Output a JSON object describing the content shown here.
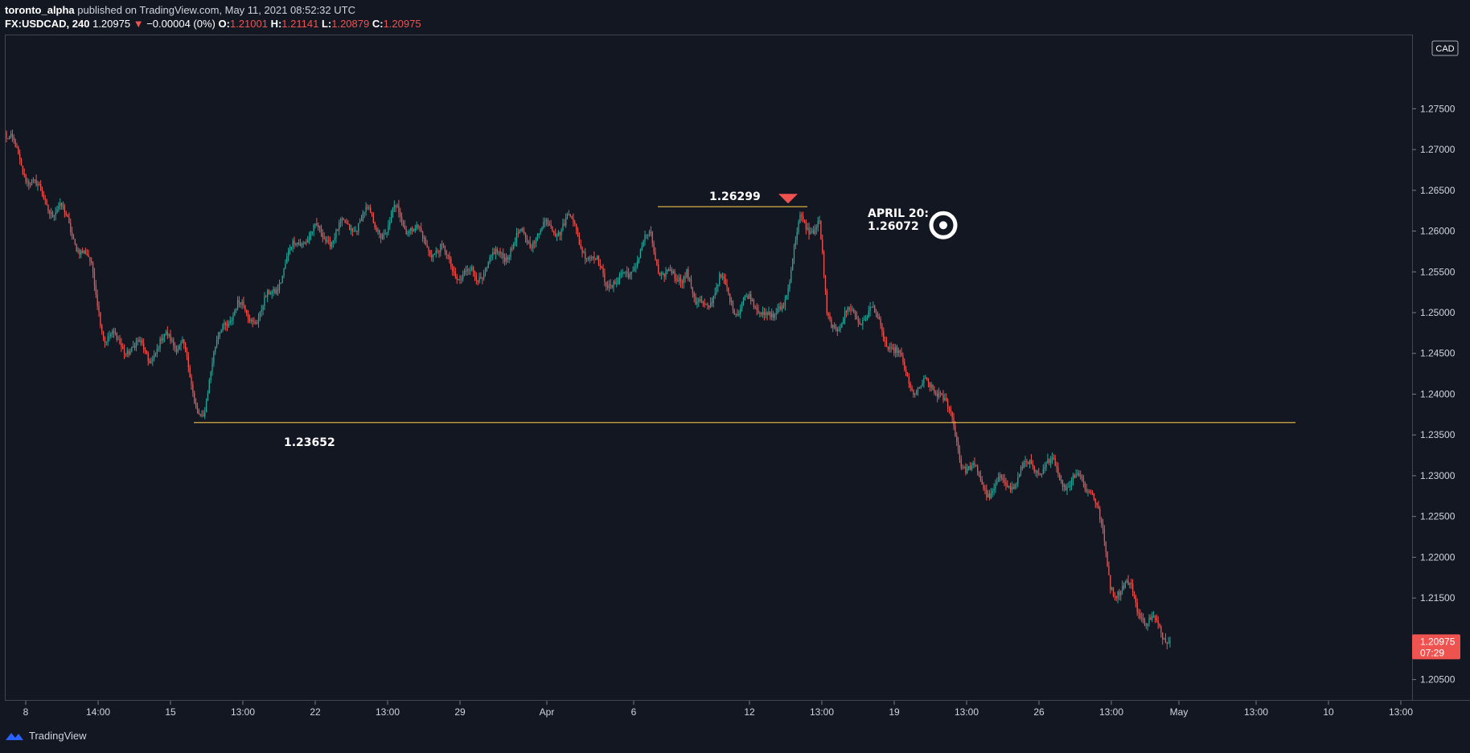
{
  "header": {
    "author": "toronto_alpha",
    "published_text": "published on TradingView.com, May 11, 2021 08:52:32 UTC",
    "symbol": "FX:USDCAD, 240",
    "last": "1.20975",
    "change": "−0.00004 (0%)",
    "o_label": "O:",
    "o_value": "1.21001",
    "h_label": "H:",
    "h_value": "1.21141",
    "l_label": "L:",
    "l_value": "1.20879",
    "c_label": "C:",
    "c_value": "1.20975"
  },
  "footer": {
    "brand": "TradingView"
  },
  "colors": {
    "background": "#131722",
    "up": "#26a69a",
    "down": "#ef5350",
    "level_line": "#f0c04a",
    "text": "#d1d4dc",
    "frame": "#434651"
  },
  "chart_data": {
    "type": "candlestick",
    "currency": "CAD",
    "ylim": [
      1.2025,
      1.284
    ],
    "y_ticks": [
      "1.27500",
      "1.27000",
      "1.26500",
      "1.26000",
      "1.25500",
      "1.25000",
      "1.24500",
      "1.24000",
      "1.23500",
      "1.23000",
      "1.22500",
      "1.22000",
      "1.21500",
      "1.20500"
    ],
    "x_ticks": [
      "8",
      "14:00",
      "15",
      "13:00",
      "22",
      "13:00",
      "29",
      "Apr",
      "6",
      "12",
      "13:00",
      "19",
      "13:00",
      "26",
      "13:00",
      "May",
      "13:00",
      "10",
      "13:00"
    ],
    "price_label": {
      "value": "1.20975",
      "countdown": "07:29"
    },
    "annotations": [
      {
        "type": "horizontal_level",
        "value": 1.23652,
        "label": "1.23652"
      },
      {
        "type": "horizontal_level",
        "value": 1.26299,
        "label": "1.26299",
        "marker": "down-arrow"
      },
      {
        "type": "target",
        "value": 1.26072,
        "label_line1": "APRIL 20:",
        "label_line2": "1.26072"
      }
    ],
    "trend_points": [
      [
        0,
        1.2705
      ],
      [
        20,
        1.2655
      ],
      [
        35,
        1.263
      ],
      [
        50,
        1.257
      ],
      [
        58,
        1.254
      ],
      [
        66,
        1.2475
      ],
      [
        82,
        1.2465
      ],
      [
        95,
        1.244
      ],
      [
        110,
        1.2465
      ],
      [
        118,
        1.2475
      ],
      [
        126,
        1.239
      ],
      [
        132,
        1.2385
      ],
      [
        145,
        1.248
      ],
      [
        155,
        1.25
      ],
      [
        170,
        1.2505
      ],
      [
        185,
        1.255
      ],
      [
        200,
        1.259
      ],
      [
        220,
        1.2605
      ],
      [
        240,
        1.261
      ],
      [
        255,
        1.2595
      ],
      [
        262,
        1.2635
      ],
      [
        275,
        1.26
      ],
      [
        290,
        1.2565
      ],
      [
        305,
        1.2545
      ],
      [
        320,
        1.256
      ],
      [
        340,
        1.2575
      ],
      [
        350,
        1.259
      ],
      [
        365,
        1.2615
      ],
      [
        378,
        1.261
      ],
      [
        392,
        1.2555
      ],
      [
        410,
        1.254
      ],
      [
        422,
        1.257
      ],
      [
        432,
        1.2585
      ],
      [
        438,
        1.2545
      ],
      [
        448,
        1.2535
      ],
      [
        456,
        1.2565
      ],
      [
        462,
        1.251
      ],
      [
        478,
        1.253
      ],
      [
        490,
        1.25
      ],
      [
        505,
        1.252
      ],
      [
        514,
        1.249
      ],
      [
        524,
        1.2535
      ],
      [
        532,
        1.26
      ],
      [
        545,
        1.2605
      ],
      [
        550,
        1.2495
      ],
      [
        565,
        1.25
      ],
      [
        580,
        1.249
      ],
      [
        600,
        1.244
      ],
      [
        612,
        1.241
      ],
      [
        625,
        1.2405
      ],
      [
        640,
        1.232
      ],
      [
        660,
        1.229
      ],
      [
        672,
        1.2285
      ],
      [
        690,
        1.231
      ],
      [
        702,
        1.232
      ],
      [
        712,
        1.2295
      ],
      [
        728,
        1.228
      ],
      [
        740,
        1.217
      ],
      [
        755,
        1.2165
      ],
      [
        765,
        1.2115
      ],
      [
        780,
        1.2098
      ]
    ],
    "count": 781
  }
}
